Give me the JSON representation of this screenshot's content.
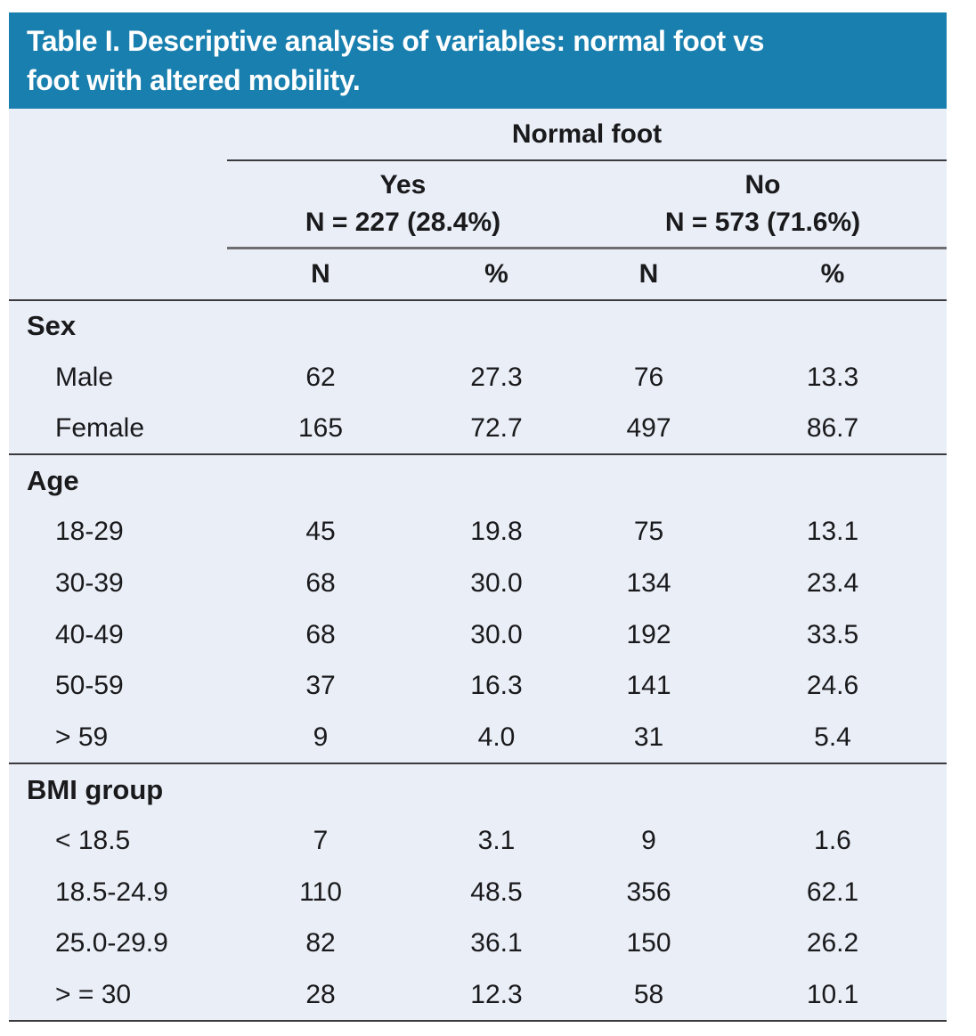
{
  "title": {
    "line1": "Table I. Descriptive analysis of variables: normal foot vs",
    "line2": "foot with altered mobility."
  },
  "table": {
    "group_header": "Normal foot",
    "col_groups": [
      {
        "label": "Yes",
        "sublabel": "N = 227 (28.4%)"
      },
      {
        "label": "No",
        "sublabel": "N = 573 (71.6%)"
      }
    ],
    "col_headers": [
      "N",
      "%",
      "N",
      "%"
    ],
    "sections": [
      {
        "name": "Sex",
        "rows": [
          {
            "label": "Male",
            "values": [
              "62",
              "27.3",
              "76",
              "13.3"
            ]
          },
          {
            "label": "Female",
            "values": [
              "165",
              "72.7",
              "497",
              "86.7"
            ]
          }
        ]
      },
      {
        "name": "Age",
        "rows": [
          {
            "label": "18-29",
            "values": [
              "45",
              "19.8",
              "75",
              "13.1"
            ]
          },
          {
            "label": "30-39",
            "values": [
              "68",
              "30.0",
              "134",
              "23.4"
            ]
          },
          {
            "label": "40-49",
            "values": [
              "68",
              "30.0",
              "192",
              "33.5"
            ]
          },
          {
            "label": "50-59",
            "values": [
              "37",
              "16.3",
              "141",
              "24.6"
            ]
          },
          {
            "label": "> 59",
            "values": [
              "9",
              "4.0",
              "31",
              "5.4"
            ]
          }
        ]
      },
      {
        "name": "BMI group",
        "rows": [
          {
            "label": "< 18.5",
            "values": [
              "7",
              "3.1",
              "9",
              "1.6"
            ]
          },
          {
            "label": "18.5-24.9",
            "values": [
              "110",
              "48.5",
              "356",
              "62.1"
            ]
          },
          {
            "label": "25.0-29.9",
            "values": [
              "82",
              "36.1",
              "150",
              "26.2"
            ]
          },
          {
            "label": "> = 30",
            "values": [
              "28",
              "12.3",
              "58",
              "10.1"
            ]
          }
        ]
      }
    ]
  },
  "colors": {
    "header_bg": "#187fae",
    "body_bg": "#e9eef7",
    "text_color": "#1a1a1c",
    "title_color": "#ffffff",
    "rule_dark": "#3a3a3c",
    "rule_gray": "#6e6e70",
    "page_bg": "#ffffff"
  }
}
